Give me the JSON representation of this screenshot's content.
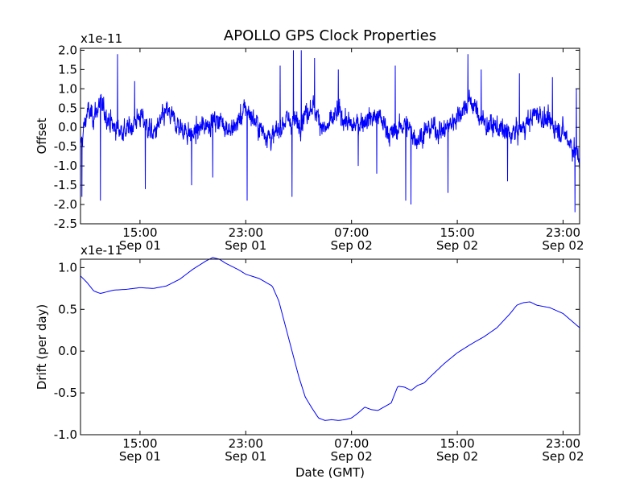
{
  "chart_data": [
    {
      "type": "line",
      "title": "APOLLO GPS Clock Properties",
      "xlabel": "",
      "ylabel": "Offset",
      "y_multiplier": "x1e-11",
      "ylim": [
        -2.5,
        2.05
      ],
      "yticks": [
        -2.5,
        -2.0,
        -1.5,
        -1.0,
        -0.5,
        0.0,
        0.5,
        1.0,
        1.5,
        2.0
      ],
      "ytick_labels": [
        "-2.5",
        "-2.0",
        "-1.5",
        "-1.0",
        "-0.5",
        "0.0",
        "0.5",
        "1.0",
        "1.5",
        "2.0"
      ],
      "xlim_hours": [
        10.5,
        48.25
      ],
      "xticks": [
        {
          "hour": 15,
          "time": "15:00",
          "date": "Sep 01"
        },
        {
          "hour": 23,
          "time": "23:00",
          "date": "Sep 01"
        },
        {
          "hour": 31,
          "time": "07:00",
          "date": "Sep 02"
        },
        {
          "hour": 39,
          "time": "15:00",
          "date": "Sep 02"
        },
        {
          "hour": 47,
          "time": "23:00",
          "date": "Sep 02"
        }
      ],
      "series": [
        {
          "x_hours": [
            10.5,
            11.0,
            11.5,
            12.0,
            13.0,
            14.0,
            15.0,
            16.0,
            17.0,
            18.0,
            19.0,
            20.0,
            21.0,
            22.0,
            23.0,
            24.0,
            25.0,
            26.0,
            27.0,
            28.0,
            29.0,
            30.0,
            31.0,
            32.0,
            33.0,
            34.0,
            35.0,
            36.0,
            37.0,
            38.0,
            39.0,
            40.0,
            41.0,
            42.0,
            43.0,
            44.0,
            45.0,
            46.0,
            47.0,
            48.25
          ],
          "values": [
            -0.5,
            0.4,
            0.3,
            0.6,
            0.0,
            -0.1,
            0.3,
            -0.2,
            0.4,
            0.0,
            -0.2,
            0.1,
            0.2,
            -0.1,
            0.5,
            0.0,
            -0.3,
            0.2,
            0.1,
            0.6,
            -0.1,
            0.4,
            0.0,
            0.2,
            0.3,
            -0.2,
            0.1,
            -0.3,
            0.0,
            -0.1,
            0.3,
            0.7,
            0.1,
            0.0,
            -0.2,
            0.0,
            0.4,
            0.1,
            -0.1,
            -0.8
          ],
          "noise": 0.45,
          "spikes": [
            {
              "hour": 10.6,
              "value": -1.8
            },
            {
              "hour": 12.0,
              "value": -1.9
            },
            {
              "hour": 13.3,
              "value": 1.9
            },
            {
              "hour": 14.6,
              "value": 1.2
            },
            {
              "hour": 15.4,
              "value": -1.6
            },
            {
              "hour": 18.9,
              "value": -1.5
            },
            {
              "hour": 20.5,
              "value": -1.3
            },
            {
              "hour": 23.1,
              "value": -1.9
            },
            {
              "hour": 25.6,
              "value": 1.6
            },
            {
              "hour": 26.6,
              "value": 2.0
            },
            {
              "hour": 27.2,
              "value": 2.0
            },
            {
              "hour": 26.5,
              "value": -1.8
            },
            {
              "hour": 28.2,
              "value": 1.8
            },
            {
              "hour": 30.0,
              "value": 1.5
            },
            {
              "hour": 31.5,
              "value": -1.0
            },
            {
              "hour": 32.9,
              "value": -1.2
            },
            {
              "hour": 34.3,
              "value": 1.6
            },
            {
              "hour": 35.1,
              "value": -1.9
            },
            {
              "hour": 35.5,
              "value": -2.0
            },
            {
              "hour": 38.3,
              "value": -1.7
            },
            {
              "hour": 39.8,
              "value": 1.9
            },
            {
              "hour": 40.8,
              "value": 1.5
            },
            {
              "hour": 42.8,
              "value": -1.4
            },
            {
              "hour": 43.7,
              "value": 1.4
            },
            {
              "hour": 46.2,
              "value": 1.3
            },
            {
              "hour": 47.9,
              "value": -2.2
            },
            {
              "hour": 48.0,
              "value": 1.0
            }
          ],
          "color": "#0000ff"
        }
      ]
    },
    {
      "type": "line",
      "title": "",
      "xlabel": "Date (GMT)",
      "ylabel": "Drift (per day)",
      "y_multiplier": "x1e-11",
      "ylim": [
        -1.0,
        1.1
      ],
      "yticks": [
        -1.0,
        -0.5,
        0.0,
        0.5,
        1.0
      ],
      "ytick_labels": [
        "-1.0",
        "-0.5",
        "0.0",
        "0.5",
        "1.0"
      ],
      "xlim_hours": [
        10.5,
        48.25
      ],
      "xticks": [
        {
          "hour": 15,
          "time": "15:00",
          "date": "Sep 01"
        },
        {
          "hour": 23,
          "time": "23:00",
          "date": "Sep 01"
        },
        {
          "hour": 31,
          "time": "07:00",
          "date": "Sep 02"
        },
        {
          "hour": 39,
          "time": "15:00",
          "date": "Sep 02"
        },
        {
          "hour": 47,
          "time": "23:00",
          "date": "Sep 02"
        }
      ],
      "series": [
        {
          "x_hours": [
            10.5,
            11.0,
            11.5,
            12.0,
            12.5,
            13.0,
            14.0,
            15.0,
            16.0,
            17.0,
            18.0,
            19.0,
            20.0,
            20.5,
            21.0,
            21.5,
            22.0,
            22.5,
            23.0,
            24.0,
            25.0,
            25.5,
            26.0,
            26.5,
            27.0,
            27.5,
            28.0,
            28.5,
            29.0,
            29.5,
            30.0,
            30.5,
            31.0,
            31.5,
            32.0,
            32.5,
            33.0,
            34.0,
            34.5,
            35.0,
            35.5,
            36.0,
            36.5,
            37.0,
            38.0,
            39.0,
            40.0,
            41.0,
            42.0,
            43.0,
            43.5,
            44.0,
            44.5,
            45.0,
            46.0,
            47.0,
            48.25
          ],
          "values": [
            0.9,
            0.82,
            0.72,
            0.69,
            0.71,
            0.73,
            0.74,
            0.76,
            0.75,
            0.78,
            0.86,
            0.98,
            1.08,
            1.12,
            1.1,
            1.05,
            1.01,
            0.97,
            0.92,
            0.87,
            0.78,
            0.6,
            0.3,
            0.0,
            -0.3,
            -0.55,
            -0.68,
            -0.8,
            -0.83,
            -0.82,
            -0.83,
            -0.82,
            -0.8,
            -0.74,
            -0.67,
            -0.7,
            -0.71,
            -0.62,
            -0.42,
            -0.43,
            -0.47,
            -0.41,
            -0.38,
            -0.3,
            -0.15,
            -0.02,
            0.08,
            0.17,
            0.28,
            0.45,
            0.55,
            0.58,
            0.59,
            0.55,
            0.52,
            0.45,
            0.28
          ],
          "color": "#0000ff"
        }
      ]
    }
  ]
}
